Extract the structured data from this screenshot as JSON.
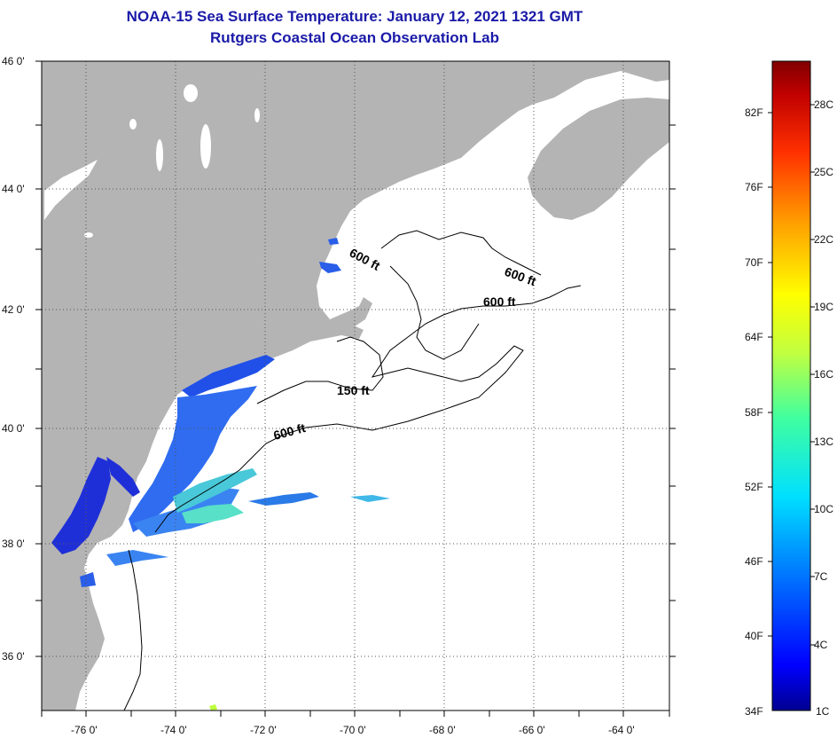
{
  "header": {
    "title": "NOAA-15 Sea Surface Temperature:  January 12, 2021 1321 GMT",
    "subtitle": "Rutgers Coastal Ocean Observation Lab"
  },
  "map": {
    "lat_labels": [
      "46 0'",
      "44 0'",
      "42 0'",
      "40 0'",
      "38 0'",
      "36 0'"
    ],
    "lon_labels": [
      "-76 0'",
      "-74 0'",
      "-72 0'",
      "-70 0'",
      "-68 0'",
      "-66 0'",
      "-64 0'"
    ],
    "contour_labels": [
      "600 ft",
      "600 ft",
      "600 ft",
      "150 ft",
      "600 ft"
    ],
    "colors": {
      "land": "#b4b4b4",
      "ocean_no_data": "#ffffff",
      "cold_water": "#1f4fe0",
      "shelf_water": "#3a7cf0",
      "warm_patch": "#4fd7d0"
    }
  },
  "colorbar": {
    "fahrenheit_labels": [
      "82F",
      "76F",
      "70F",
      "64F",
      "58F",
      "52F",
      "46F",
      "40F",
      "34F"
    ],
    "celsius_labels": [
      "28C",
      "25C",
      "22C",
      "19C",
      "16C",
      "13C",
      "10C",
      "7C",
      "4C",
      "1C"
    ],
    "colors": [
      "#000090",
      "#0000ff",
      "#0080ff",
      "#00e0ff",
      "#40ffa0",
      "#c0ff40",
      "#ffff00",
      "#ffa000",
      "#ff3000",
      "#c00000",
      "#800000"
    ]
  }
}
